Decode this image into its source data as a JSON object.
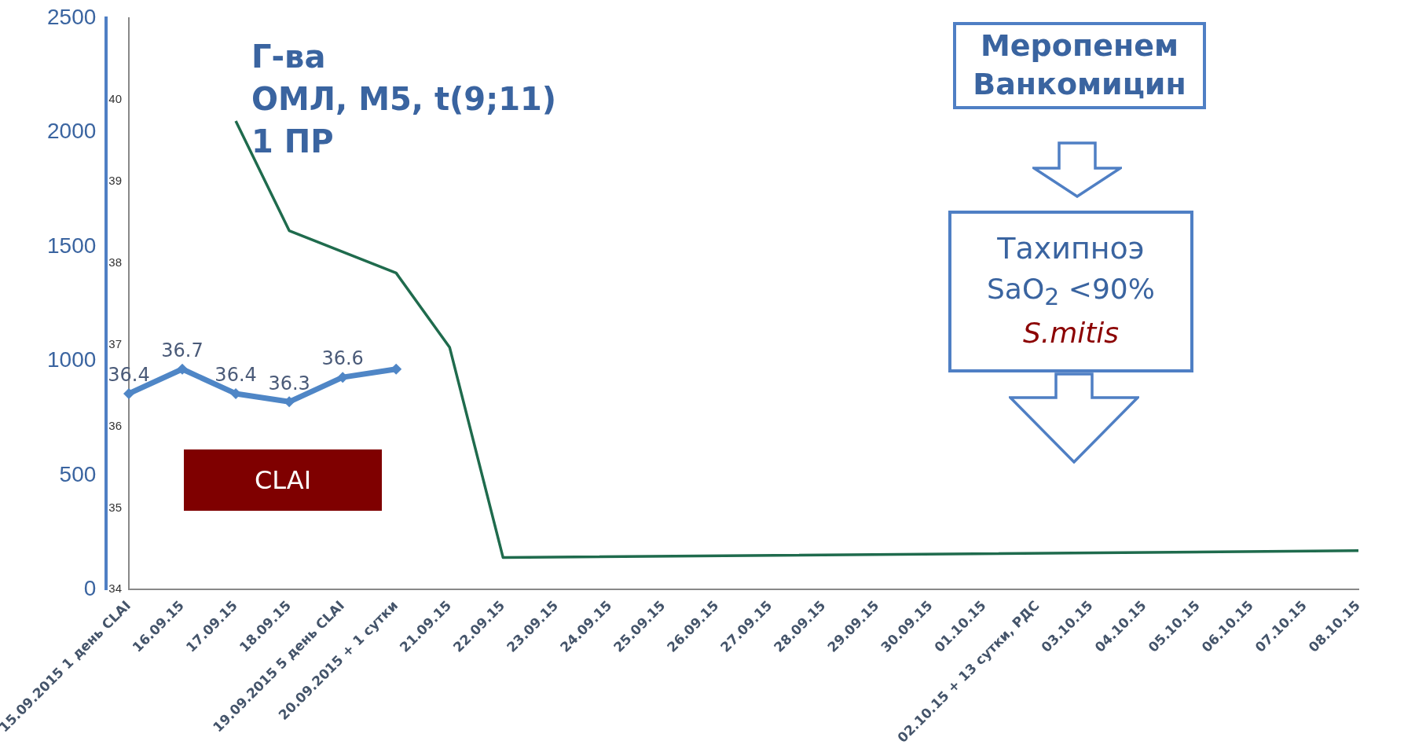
{
  "chart_data": {
    "type": "line",
    "categories": [
      "15.09.2015 1 день CLAI",
      "16.09.15",
      "17.09.15",
      "18.09.15",
      "19.09.2015 5 день CLAI",
      "20.09.2015 + 1 сутки",
      "21.09.15",
      "22.09.15",
      "23.09.15",
      "24.09.15",
      "25.09.15",
      "26.09.15",
      "27.09.15",
      "28.09.15",
      "29.09.15",
      "30.09.15",
      "01.10.15",
      "02.10.15 + 13 сутки, РДС",
      "03.10.15",
      "04.10.15",
      "05.10.15",
      "06.10.15",
      "07.10.15",
      "08.10.15"
    ],
    "series": [
      {
        "color": "#4f86c6",
        "marker": "diamond",
        "values": [
          36.4,
          36.7,
          36.4,
          36.3,
          36.6,
          36.7,
          null,
          null,
          null,
          null,
          null,
          null,
          null,
          null,
          null,
          null,
          null,
          null,
          null,
          null,
          null,
          null,
          null,
          null
        ],
        "value_labels": [
          "36.4",
          "36.7",
          "36.4",
          "36.3",
          "36.6",
          null,
          null,
          null,
          null,
          null,
          null,
          null,
          null,
          null,
          null,
          null,
          null,
          null,
          null,
          null,
          null,
          null,
          null,
          null
        ]
      },
      {
        "color": "#1f6b4d",
        "marker": "none",
        "axis": "y2",
        "values": [
          null,
          null,
          2050,
          1570,
          null,
          1385,
          1060,
          140,
          null,
          null,
          null,
          null,
          null,
          null,
          null,
          null,
          null,
          null,
          null,
          null,
          null,
          null,
          null,
          170
        ]
      }
    ],
    "ylim": [
      34,
      41
    ],
    "yticks": [
      34,
      35,
      36,
      37,
      38,
      39,
      40
    ],
    "y2lim": [
      0,
      2500
    ],
    "y2ticks": [
      0,
      500,
      1000,
      1500,
      2000,
      2500
    ],
    "grid": false,
    "legend": false,
    "annotations": [
      "Г-ва\nОМЛ, М5, t(9;11)\n1 ПР",
      "CLAI",
      "Меропенем Ванкомицин",
      "Тахипноэ",
      "SaO$_{2}$ <90%",
      "S.mitis"
    ]
  }
}
